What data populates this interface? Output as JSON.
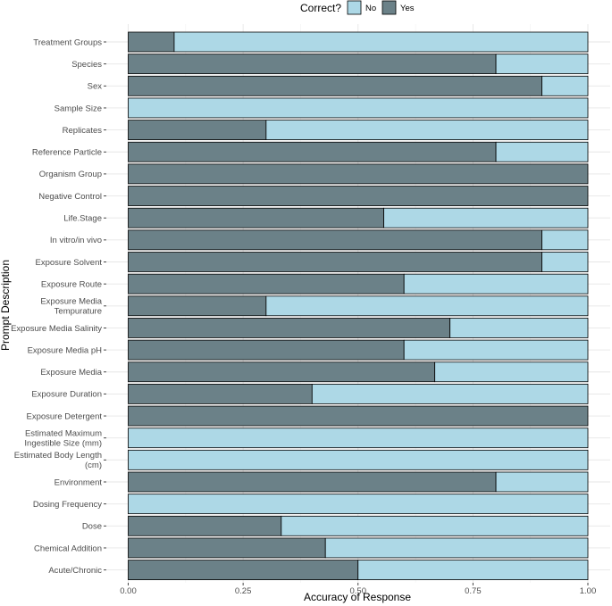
{
  "chart_data": {
    "type": "bar",
    "orientation": "horizontal",
    "stacked": true,
    "xlabel": "Accuracy of Response",
    "ylabel": "Prompt Description",
    "xlim": [
      0,
      1
    ],
    "x_ticks": [
      "0.00",
      "0.25",
      "0.50",
      "0.75",
      "1.00"
    ],
    "legend": {
      "title": "Correct?",
      "position": "top",
      "entries": [
        "No",
        "Yes"
      ]
    },
    "colors": {
      "No": "#add8e6",
      "Yes": "#6b8188"
    },
    "grid": true,
    "categories": [
      "Treatment Groups",
      "Species",
      "Sex",
      "Sample Size",
      "Replicates",
      "Reference Particle",
      "Organism Group",
      "Negative Control",
      "Life.Stage",
      "In vitro/in vivo",
      "Exposure Solvent",
      "Exposure Route",
      "Exposure Media\nTempurature",
      "Exposure Media Salinity",
      "Exposure Media pH",
      "Exposure Media",
      "Exposure Duration",
      "Exposure Detergent",
      "Estimated Maximum\nIngestible Size (mm)",
      "Estimated Body Length\n(cm)",
      "Environment",
      "Dosing Frequency",
      "Dose",
      "Chemical Addition",
      "Acute/Chronic"
    ],
    "series": [
      {
        "name": "Yes",
        "values": [
          0.1,
          0.8,
          0.9,
          0.0,
          0.3,
          0.8,
          1.0,
          1.0,
          0.556,
          0.9,
          0.9,
          0.6,
          0.3,
          0.7,
          0.6,
          0.667,
          0.4,
          1.0,
          0.0,
          0.0,
          0.8,
          0.0,
          0.333,
          0.429,
          0.5
        ]
      },
      {
        "name": "No",
        "values": [
          0.9,
          0.2,
          0.1,
          1.0,
          0.7,
          0.2,
          0.0,
          0.0,
          0.444,
          0.1,
          0.1,
          0.4,
          0.7,
          0.3,
          0.4,
          0.333,
          0.6,
          0.0,
          1.0,
          1.0,
          0.2,
          1.0,
          0.667,
          0.571,
          0.5
        ]
      }
    ]
  }
}
